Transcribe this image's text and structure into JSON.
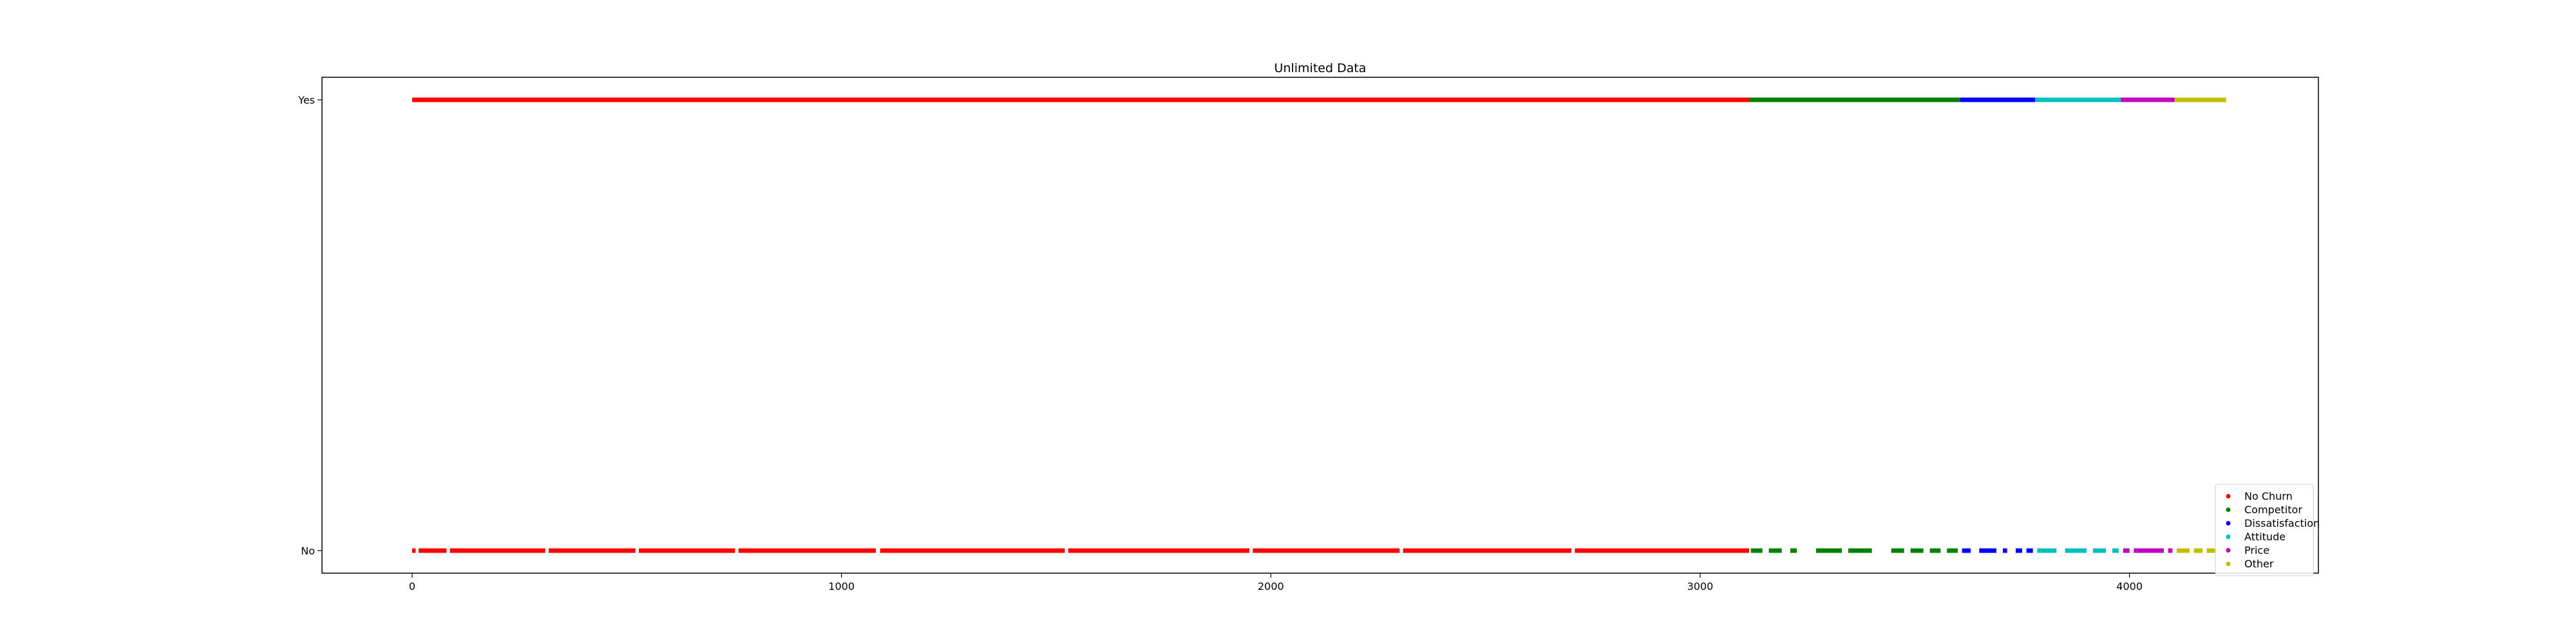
{
  "chart_data": {
    "type": "scatter",
    "title": "Unlimited Data",
    "xlabel": "",
    "ylabel": "",
    "xlim": [
      -210,
      4440
    ],
    "x_ticks": [
      0,
      1000,
      2000,
      3000,
      4000
    ],
    "x_tick_labels": [
      "0",
      "1000",
      "2000",
      "3000",
      "4000"
    ],
    "y_categories": [
      "No",
      "Yes"
    ],
    "grid": false,
    "legend_position": "lower-right",
    "series": [
      {
        "name": "No Churn",
        "color": "#ff0000",
        "x_range": [
          0,
          3114
        ],
        "yes_segments": [
          [
            0,
            3114
          ]
        ],
        "no_segments": [
          [
            0,
            8
          ],
          [
            15,
            80
          ],
          [
            88,
            310
          ],
          [
            318,
            520
          ],
          [
            528,
            752
          ],
          [
            760,
            1080
          ],
          [
            1090,
            1520
          ],
          [
            1528,
            1950
          ],
          [
            1958,
            2300
          ],
          [
            2308,
            2700
          ],
          [
            2708,
            3114
          ]
        ]
      },
      {
        "name": "Competitor",
        "color": "#008000",
        "x_range": [
          3114,
          3605
        ],
        "yes_segments": [
          [
            3114,
            3605
          ]
        ],
        "no_segments": [
          [
            3118,
            3145
          ],
          [
            3160,
            3190
          ],
          [
            3210,
            3225
          ],
          [
            3270,
            3330
          ],
          [
            3345,
            3400
          ],
          [
            3445,
            3475
          ],
          [
            3490,
            3520
          ],
          [
            3535,
            3560
          ],
          [
            3575,
            3600
          ]
        ]
      },
      {
        "name": "Dissatisfaction",
        "color": "#0000ff",
        "x_range": [
          3605,
          3780
        ],
        "yes_segments": [
          [
            3605,
            3780
          ]
        ],
        "no_segments": [
          [
            3610,
            3630
          ],
          [
            3650,
            3690
          ],
          [
            3705,
            3715
          ],
          [
            3735,
            3750
          ],
          [
            3760,
            3775
          ]
        ]
      },
      {
        "name": "Attitude",
        "color": "#00bfbf",
        "x_range": [
          3780,
          3980
        ],
        "yes_segments": [
          [
            3780,
            3980
          ]
        ],
        "no_segments": [
          [
            3785,
            3830
          ],
          [
            3850,
            3900
          ],
          [
            3915,
            3945
          ],
          [
            3960,
            3975
          ]
        ]
      },
      {
        "name": "Price",
        "color": "#bf00bf",
        "x_range": [
          3980,
          4105
        ],
        "yes_segments": [
          [
            3980,
            4105
          ]
        ],
        "no_segments": [
          [
            3985,
            4000
          ],
          [
            4010,
            4080
          ],
          [
            4090,
            4100
          ]
        ]
      },
      {
        "name": "Other",
        "color": "#bfbf00",
        "x_range": [
          4105,
          4225
        ],
        "yes_segments": [
          [
            4105,
            4225
          ]
        ],
        "no_segments": [
          [
            4110,
            4140
          ],
          [
            4150,
            4170
          ],
          [
            4180,
            4200
          ]
        ]
      }
    ]
  }
}
